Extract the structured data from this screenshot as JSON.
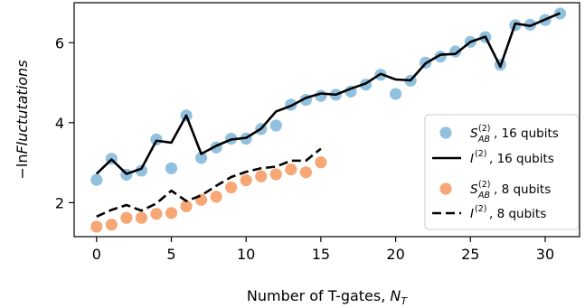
{
  "chart_data": {
    "type": "scatter",
    "xlabel_prefix": "Number of T-gates, ",
    "xlabel_symbol": "N",
    "xlabel_subscript": "T",
    "ylabel_prefix": "−ln",
    "ylabel_italic": "Fluctutations",
    "xlim": [
      -1.5,
      32.3
    ],
    "ylim": [
      1.15,
      7.0
    ],
    "xticks": [
      0,
      5,
      10,
      15,
      20,
      25,
      30
    ],
    "yticks": [
      2,
      4,
      6
    ],
    "grid": false,
    "legend_position": "lower-right",
    "series": [
      {
        "name": "S_AB^(2), 16 qubits",
        "kind": "scatter",
        "color": "#92c1e0",
        "x": [
          0,
          1,
          2,
          3,
          4,
          5,
          6,
          7,
          8,
          9,
          10,
          11,
          12,
          13,
          14,
          15,
          16,
          17,
          18,
          19,
          20,
          21,
          22,
          23,
          24,
          25,
          26,
          27,
          28,
          29,
          30,
          31
        ],
        "y": [
          2.57,
          3.1,
          2.7,
          2.8,
          3.58,
          2.86,
          4.18,
          3.12,
          3.38,
          3.6,
          3.6,
          3.84,
          3.93,
          4.45,
          4.57,
          4.67,
          4.7,
          4.78,
          4.95,
          5.2,
          4.72,
          5.05,
          5.5,
          5.65,
          5.78,
          6.02,
          6.14,
          5.45,
          6.44,
          6.45,
          6.57,
          6.73
        ]
      },
      {
        "name": "I^(2), 16 qubits",
        "kind": "line",
        "dash": "solid",
        "color": "#000000",
        "x": [
          0,
          1,
          2,
          3,
          4,
          5,
          6,
          7,
          8,
          9,
          10,
          11,
          12,
          13,
          14,
          15,
          16,
          17,
          18,
          19,
          20,
          21,
          22,
          23,
          24,
          25,
          26,
          27,
          28,
          29,
          30,
          31
        ],
        "y": [
          2.72,
          3.08,
          2.72,
          2.85,
          3.55,
          3.5,
          4.18,
          3.22,
          3.42,
          3.58,
          3.62,
          3.85,
          4.28,
          4.42,
          4.62,
          4.73,
          4.7,
          4.85,
          4.98,
          5.22,
          5.08,
          5.06,
          5.48,
          5.7,
          5.72,
          6.02,
          6.15,
          5.4,
          6.48,
          6.42,
          6.58,
          6.74
        ]
      },
      {
        "name": "S_AB^(2), 8 qubits",
        "kind": "scatter",
        "color": "#f7a775",
        "x": [
          0,
          1,
          2,
          3,
          4,
          5,
          6,
          7,
          8,
          9,
          10,
          11,
          12,
          13,
          14,
          15
        ],
        "y": [
          1.4,
          1.45,
          1.62,
          1.62,
          1.72,
          1.74,
          1.91,
          2.07,
          2.15,
          2.38,
          2.56,
          2.66,
          2.71,
          2.83,
          2.76,
          3.01
        ]
      },
      {
        "name": "I^(2), 8 qubits",
        "kind": "line",
        "dash": "dashed",
        "color": "#000000",
        "x": [
          0,
          1,
          2,
          3,
          4,
          5,
          6,
          7,
          8,
          9,
          10,
          11,
          12,
          13,
          14,
          15
        ],
        "y": [
          1.65,
          1.82,
          1.94,
          1.8,
          1.98,
          2.3,
          2.04,
          2.18,
          2.42,
          2.64,
          2.77,
          2.86,
          2.9,
          3.05,
          3.05,
          3.35
        ]
      }
    ],
    "legend": [
      {
        "sym": "S",
        "sub": "AB",
        "sup": "(2)",
        "rest": ", 16 qubits"
      },
      {
        "sym": "I",
        "sub": "",
        "sup": "(2)",
        "rest": ", 16 qubits"
      },
      {
        "sym": "S",
        "sub": "AB",
        "sup": "(2)",
        "rest": ", 8 qubits"
      },
      {
        "sym": "I",
        "sub": "",
        "sup": "(2)",
        "rest": ", 8 qubits"
      }
    ]
  }
}
